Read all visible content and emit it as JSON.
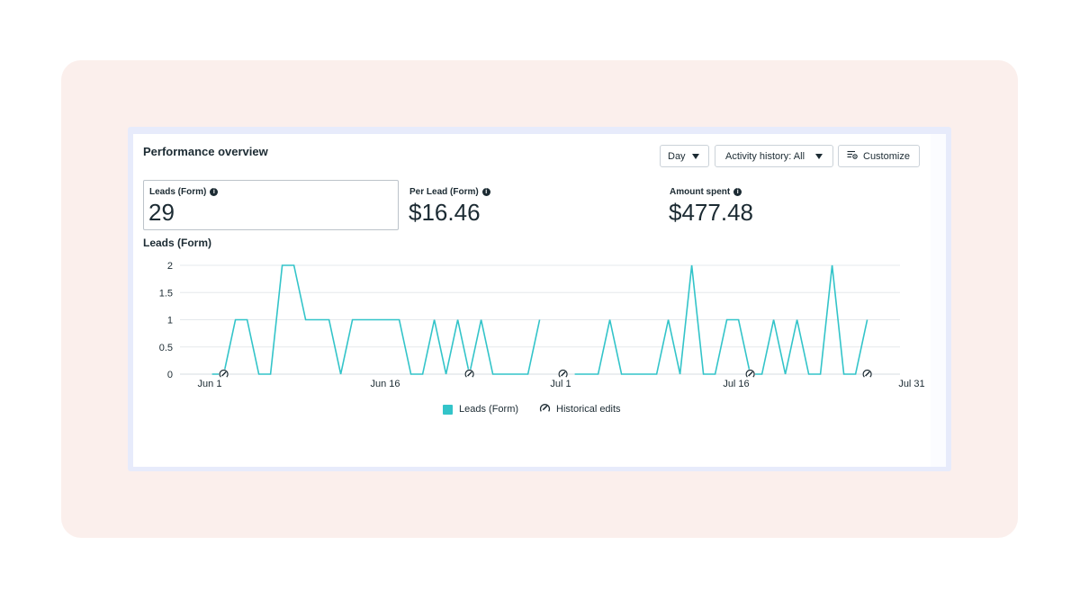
{
  "panel": {
    "title": "Performance overview",
    "controls": {
      "day_label": "Day",
      "activity_label": "Activity history: All",
      "customize_label": "Customize"
    }
  },
  "metrics": [
    {
      "label": "Leads (Form)",
      "value": "29",
      "selected": true
    },
    {
      "label": "Per Lead (Form)",
      "value": "$16.46",
      "selected": false
    },
    {
      "label": "Amount spent",
      "value": "$477.48",
      "selected": false
    }
  ],
  "chart_title": "Leads (Form)",
  "legend": {
    "series_label": "Leads (Form)",
    "edits_label": "Historical edits"
  },
  "colors": {
    "series": "#33c4c9",
    "backdrop": "#fbefec",
    "frame": "#e7ebfb",
    "gridline": "#e5e8ec",
    "text": "#1c2b33"
  },
  "chart_data": {
    "type": "line",
    "xlabel": "",
    "ylabel": "",
    "ylim": [
      0,
      2
    ],
    "yticks": [
      "0",
      "0.5",
      "1",
      "1.5",
      "2"
    ],
    "x_tick_labels": [
      {
        "day": 0,
        "label": "Jun 1"
      },
      {
        "day": 15,
        "label": "Jun 16"
      },
      {
        "day": 30,
        "label": "Jul 1"
      },
      {
        "day": 45,
        "label": "Jul 16"
      },
      {
        "day": 60,
        "label": "Jul 31"
      }
    ],
    "grid": true,
    "legend_position": "bottom",
    "series": [
      {
        "name": "Leads (Form)",
        "segments": [
          [
            [
              0.2,
              0
            ],
            [
              1.2,
              0
            ],
            [
              2.2,
              1
            ],
            [
              3.2,
              1
            ],
            [
              4.2,
              0
            ],
            [
              5.2,
              0
            ],
            [
              6.2,
              2
            ],
            [
              7.2,
              2
            ],
            [
              8.2,
              1
            ],
            [
              9.2,
              1
            ],
            [
              10.2,
              1
            ],
            [
              11.2,
              0
            ],
            [
              12.2,
              1
            ],
            [
              13.2,
              1
            ],
            [
              14.2,
              1
            ],
            [
              15.2,
              1
            ],
            [
              16.2,
              1
            ],
            [
              17.2,
              0
            ],
            [
              18.2,
              0
            ],
            [
              19.2,
              1
            ],
            [
              20.2,
              0
            ],
            [
              21.2,
              1
            ],
            [
              22.2,
              0
            ],
            [
              23.2,
              1
            ],
            [
              24.2,
              0
            ],
            [
              25.2,
              0
            ],
            [
              26.2,
              0
            ],
            [
              27.2,
              0
            ],
            [
              28.2,
              1
            ]
          ],
          [
            [
              31.2,
              0
            ],
            [
              32.2,
              0
            ],
            [
              33.2,
              0
            ],
            [
              34.2,
              1
            ],
            [
              35.2,
              0
            ],
            [
              36.2,
              0
            ],
            [
              37.2,
              0
            ],
            [
              38.2,
              0
            ],
            [
              39.2,
              1
            ],
            [
              40.2,
              0
            ],
            [
              41.2,
              2
            ],
            [
              42.2,
              0
            ],
            [
              43.2,
              0
            ],
            [
              44.2,
              1
            ],
            [
              45.2,
              1
            ],
            [
              46.2,
              0
            ],
            [
              47.2,
              0
            ],
            [
              48.2,
              1
            ],
            [
              49.2,
              0
            ],
            [
              50.2,
              1
            ],
            [
              51.2,
              0
            ],
            [
              52.2,
              0
            ],
            [
              53.2,
              2
            ],
            [
              54.2,
              0
            ],
            [
              55.2,
              0
            ],
            [
              56.2,
              1
            ]
          ]
        ]
      }
    ],
    "historical_edit_days": [
      1.2,
      22.2,
      30.2,
      46.2,
      56.2
    ]
  }
}
